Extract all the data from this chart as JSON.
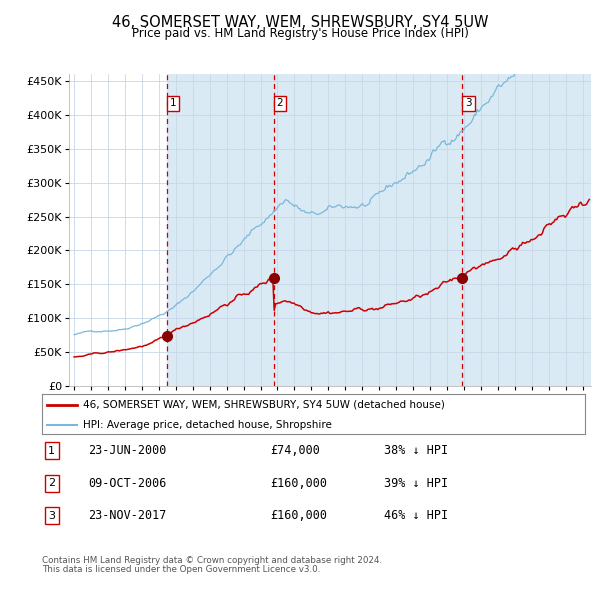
{
  "title": "46, SOMERSET WAY, WEM, SHREWSBURY, SY4 5UW",
  "subtitle": "Price paid vs. HM Land Registry's House Price Index (HPI)",
  "legend_line1": "46, SOMERSET WAY, WEM, SHREWSBURY, SY4 5UW (detached house)",
  "legend_line2": "HPI: Average price, detached house, Shropshire",
  "footer1": "Contains HM Land Registry data © Crown copyright and database right 2024.",
  "footer2": "This data is licensed under the Open Government Licence v3.0.",
  "transactions": [
    {
      "num": 1,
      "date": "23-JUN-2000",
      "price": 74000,
      "pct": "38%",
      "dir": "↓",
      "year_x": 2000.47
    },
    {
      "num": 2,
      "date": "09-OCT-2006",
      "price": 160000,
      "pct": "39%",
      "dir": "↓",
      "year_x": 2006.77
    },
    {
      "num": 3,
      "date": "23-NOV-2017",
      "price": 160000,
      "pct": "46%",
      "dir": "↓",
      "year_x": 2017.9
    }
  ],
  "hpi_color": "#7ab8d9",
  "price_color": "#cc0000",
  "bg_shade_color": "#daeaf5",
  "vline_color": "#cc0000",
  "ylim": [
    0,
    460000
  ],
  "xlim_start": 1994.7,
  "xlim_end": 2025.5
}
